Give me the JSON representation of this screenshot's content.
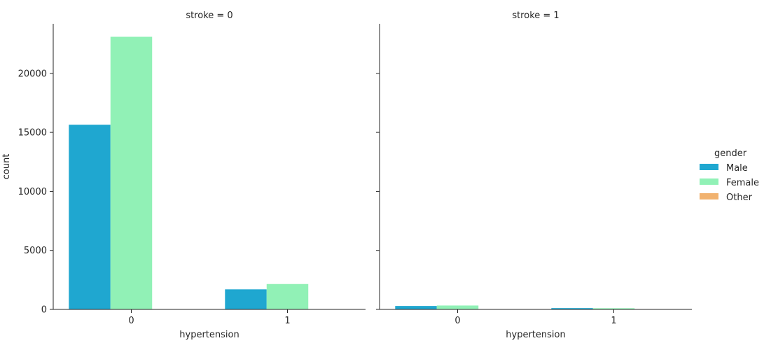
{
  "chart_data": {
    "type": "bar",
    "ylabel": "count",
    "xlabel": "hypertension",
    "ylim": [
      0,
      24200
    ],
    "yticks": [
      0,
      5000,
      10000,
      15000,
      20000
    ],
    "categories": [
      "0",
      "1"
    ],
    "facets": [
      {
        "title": "stroke = 0",
        "series": [
          {
            "name": "Male",
            "values": [
              15650,
              1700
            ]
          },
          {
            "name": "Female",
            "values": [
              23100,
              2150
            ]
          },
          {
            "name": "Other",
            "values": [
              0,
              0
            ]
          }
        ]
      },
      {
        "title": "stroke = 1",
        "series": [
          {
            "name": "Male",
            "values": [
              290,
              110
            ]
          },
          {
            "name": "Female",
            "values": [
              330,
              100
            ]
          },
          {
            "name": "Other",
            "values": [
              0,
              0
            ]
          }
        ]
      }
    ],
    "legend": {
      "title": "gender",
      "placement": "right",
      "items": [
        {
          "name": "Male",
          "color": "#1fa7d0"
        },
        {
          "name": "Female",
          "color": "#91f1b6"
        },
        {
          "name": "Other",
          "color": "#f1b26f"
        }
      ]
    },
    "grid": false
  }
}
